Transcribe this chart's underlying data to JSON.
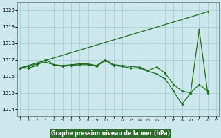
{
  "xlabel": "Graphe pression niveau de la mer (hPa)",
  "bg_color": "#cce8ec",
  "grid_color": "#9fccd4",
  "line_color": "#1e6b1e",
  "label_bg": "#2d6b2d",
  "ylim": [
    1013.6,
    1020.5
  ],
  "xlim": [
    -0.3,
    23.3
  ],
  "yticks": [
    1014,
    1015,
    1016,
    1017,
    1018,
    1019,
    1020
  ],
  "xticks": [
    0,
    1,
    2,
    3,
    4,
    5,
    6,
    7,
    8,
    9,
    10,
    11,
    12,
    13,
    14,
    15,
    16,
    17,
    18,
    19,
    20,
    21,
    22,
    23
  ],
  "line1_x": [
    0,
    22
  ],
  "line1_y": [
    1016.5,
    1019.9
  ],
  "line2_x": [
    0,
    1,
    2,
    3,
    4,
    5,
    6,
    7,
    8,
    9,
    10,
    11,
    12,
    13,
    14,
    15,
    16,
    17,
    18,
    19,
    20,
    21,
    22
  ],
  "line2_y": [
    1016.5,
    1016.6,
    1016.75,
    1016.85,
    1016.7,
    1016.65,
    1016.7,
    1016.75,
    1016.75,
    1016.65,
    1017.0,
    1016.7,
    1016.65,
    1016.6,
    1016.55,
    1016.35,
    1016.55,
    1016.2,
    1015.5,
    1015.1,
    1015.0,
    1018.8,
    1015.0
  ],
  "line3_x": [
    0,
    1,
    2,
    3,
    4,
    5,
    6,
    7,
    8,
    9,
    10,
    11,
    12,
    13,
    14,
    15,
    16,
    17,
    18,
    19,
    20,
    21,
    22
  ],
  "line3_y": [
    1016.5,
    1016.5,
    1016.65,
    1017.0,
    1016.7,
    1016.6,
    1016.65,
    1016.7,
    1016.7,
    1016.6,
    1016.95,
    1016.65,
    1016.6,
    1016.5,
    1016.5,
    1016.3,
    1016.15,
    1015.85,
    1015.1,
    1014.3,
    1015.0,
    1015.5,
    1015.1
  ]
}
